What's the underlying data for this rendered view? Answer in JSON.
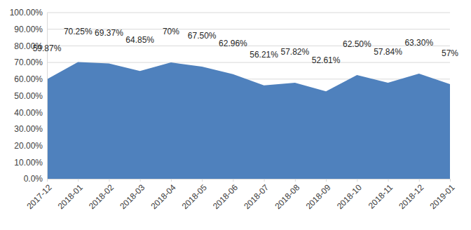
{
  "chart_data": {
    "type": "area",
    "categories": [
      "2017-12",
      "2018-01",
      "2018-02",
      "2018-03",
      "2018-04",
      "2018-05",
      "2018-06",
      "2018-07",
      "2018-08",
      "2018-09",
      "2018-10",
      "2018-11",
      "2018-12",
      "2019-01"
    ],
    "values": [
      59.87,
      70.25,
      69.37,
      64.85,
      70,
      67.5,
      62.96,
      56.21,
      57.82,
      52.61,
      62.5,
      57.84,
      63.3,
      57
    ],
    "value_labels": [
      "59.87%",
      "70.25%",
      "69.37%",
      "64.85%",
      "70%",
      "67.50%",
      "62.96%",
      "56.21%",
      "57.82%",
      "52.61%",
      "62.50%",
      "57.84%",
      "63.30%",
      "57%"
    ],
    "color": "#4f81bd",
    "data_labels": true,
    "grid": true,
    "ylim": [
      0,
      100
    ],
    "yticks": [
      {
        "value": 0,
        "label": "0.0%"
      },
      {
        "value": 10,
        "label": "10.00%"
      },
      {
        "value": 20,
        "label": "20.00%"
      },
      {
        "value": 30,
        "label": "30.00%"
      },
      {
        "value": 40,
        "label": "40.00%"
      },
      {
        "value": 50,
        "label": "50.00%"
      },
      {
        "value": 60,
        "label": "60.00%"
      },
      {
        "value": 70,
        "label": "70.00%"
      },
      {
        "value": 80,
        "label": "80.00%"
      },
      {
        "value": 90,
        "label": "90.00%"
      },
      {
        "value": 100,
        "label": "100.00%"
      }
    ]
  }
}
